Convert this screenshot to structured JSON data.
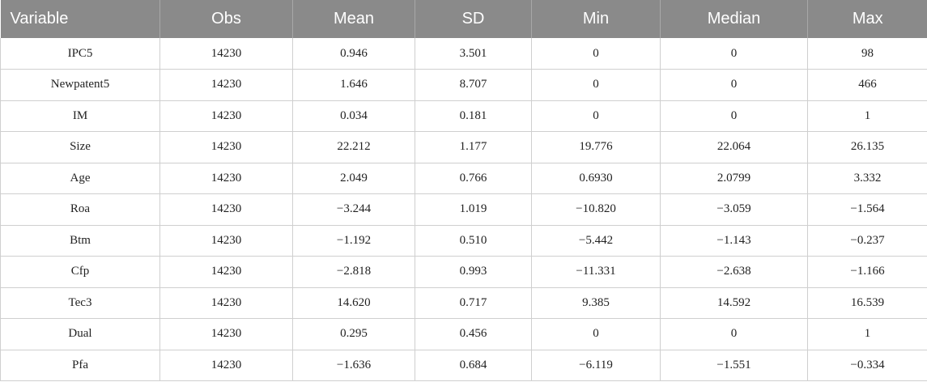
{
  "table": {
    "headers": [
      "Variable",
      "Obs",
      "Mean",
      "SD",
      "Min",
      "Median",
      "Max"
    ],
    "rows": [
      [
        "IPC5",
        "14230",
        "0.946",
        "3.501",
        "0",
        "0",
        "98"
      ],
      [
        "Newpatent5",
        "14230",
        "1.646",
        "8.707",
        "0",
        "0",
        "466"
      ],
      [
        "IM",
        "14230",
        "0.034",
        "0.181",
        "0",
        "0",
        "1"
      ],
      [
        "Size",
        "14230",
        "22.212",
        "1.177",
        "19.776",
        "22.064",
        "26.135"
      ],
      [
        "Age",
        "14230",
        "2.049",
        "0.766",
        "0.6930",
        "2.0799",
        "3.332"
      ],
      [
        "Roa",
        "14230",
        "−3.244",
        "1.019",
        "−10.820",
        "−3.059",
        "−1.564"
      ],
      [
        "Btm",
        "14230",
        "−1.192",
        "0.510",
        "−5.442",
        "−1.143",
        "−0.237"
      ],
      [
        "Cfp",
        "14230",
        "−2.818",
        "0.993",
        "−11.331",
        "−2.638",
        "−1.166"
      ],
      [
        "Tec3",
        "14230",
        "14.620",
        "0.717",
        "9.385",
        "14.592",
        "16.539"
      ],
      [
        "Dual",
        "14230",
        "0.295",
        "0.456",
        "0",
        "0",
        "1"
      ],
      [
        "Pfa",
        "14230",
        "−1.636",
        "0.684",
        "−6.119",
        "−1.551",
        "−0.334"
      ]
    ]
  }
}
